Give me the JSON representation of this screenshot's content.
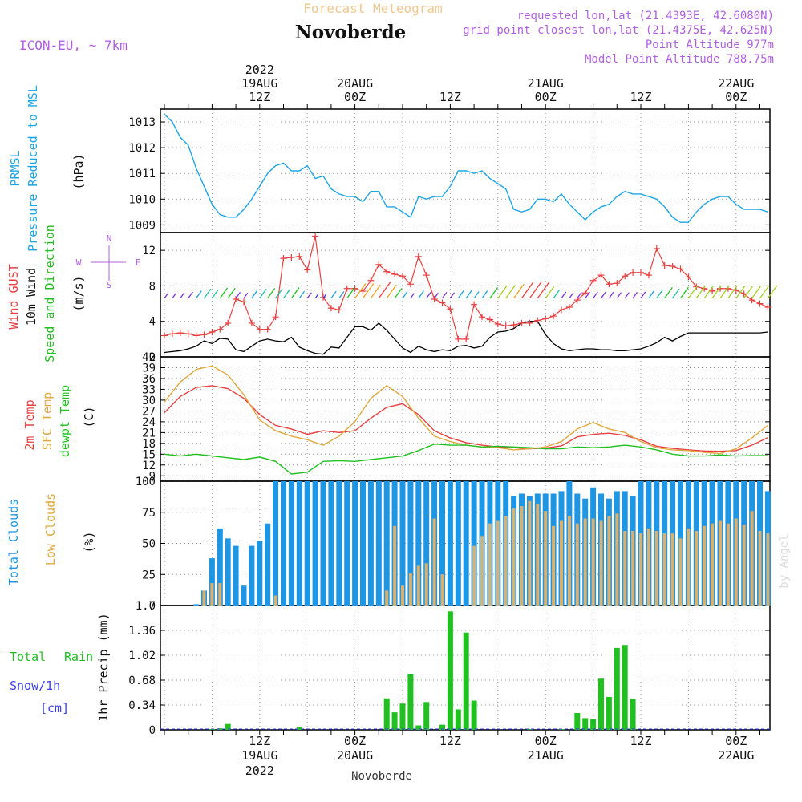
{
  "header": {
    "title": "Forecast Meteogram",
    "location": "Novoberde",
    "model": "ICON-EU, ~ 7km",
    "requested": "requested lon,lat (21.4393E, 42.6080N)",
    "gridpoint": "grid point closest lon,lat (21.4375E, 42.625N)",
    "point_alt": "Point Altitude 977m",
    "model_alt": "Model Point Altitude 788.75m",
    "watermark": "by Angel",
    "footer": "Novoberde"
  },
  "time_axis": {
    "top": [
      {
        "h": 12,
        "l1": "19AUG",
        "l2": "12Z",
        "l0": "2022"
      },
      {
        "h": 24,
        "l1": "20AUG",
        "l2": "00Z"
      },
      {
        "h": 36,
        "l1": "",
        "l2": "12Z"
      },
      {
        "h": 48,
        "l1": "21AUG",
        "l2": "00Z"
      },
      {
        "h": 60,
        "l1": "",
        "l2": "12Z"
      },
      {
        "h": 72,
        "l1": "22AUG",
        "l2": "00Z"
      }
    ],
    "bottom": [
      {
        "h": 12,
        "l1": "12Z",
        "l2": "19AUG",
        "l3": "2022"
      },
      {
        "h": 24,
        "l1": "00Z",
        "l2": "20AUG"
      },
      {
        "h": 36,
        "l1": "12Z",
        "l2": ""
      },
      {
        "h": 48,
        "l1": "00Z",
        "l2": "21AUG"
      },
      {
        "h": 60,
        "l1": "12Z",
        "l2": ""
      },
      {
        "h": 72,
        "l1": "00Z",
        "l2": "22AUG"
      }
    ]
  },
  "panel_labels": {
    "pressure": [
      "PRMSL",
      "Pressure Reduced to MSL",
      "(hPa)"
    ],
    "wind": [
      "Wind GUST",
      "10m Wind",
      "Speed and Direction",
      "(m/s)",
      "W",
      "E",
      "N",
      "S"
    ],
    "temp": [
      "2m Temp",
      "SFC Temp",
      "dewpt Temp",
      "(C)"
    ],
    "clouds": [
      "Total Clouds",
      "Low Clouds",
      "(%)"
    ],
    "precip": [
      "Total",
      "Rain",
      "Snow/1h",
      "[cm]",
      "1hr Precip (mm)"
    ]
  },
  "colors": {
    "pressure": "#1ea5e6",
    "gust": "#e84040",
    "wind": "#000000",
    "t2m": "#e84040",
    "sfc": "#e0a840",
    "dew": "#20c020",
    "total_clouds": "#1e96e6",
    "low_clouds": "#d8b070",
    "rain": "#20c020",
    "snow": "#3c3cf0",
    "title": "#f0c890",
    "meta": "#b060e0"
  },
  "chart_data": [
    {
      "type": "line",
      "title": "PRMSL Pressure Reduced to MSL",
      "ylabel": "(hPa)",
      "ylim": [
        1008.7,
        1013.5
      ],
      "yticks": [
        1009,
        1010,
        1011,
        1012,
        1013
      ],
      "x_hours": [
        0,
        1,
        2,
        3,
        4,
        5,
        6,
        7,
        8,
        9,
        10,
        11,
        12,
        13,
        14,
        15,
        16,
        17,
        18,
        19,
        20,
        21,
        22,
        23,
        24,
        25,
        26,
        27,
        28,
        29,
        30,
        31,
        32,
        33,
        34,
        35,
        36,
        37,
        38,
        39,
        40,
        41,
        42,
        43,
        44,
        45,
        46,
        47,
        48,
        49,
        50,
        51,
        52,
        53,
        54,
        55,
        56,
        57,
        58,
        59,
        60,
        61,
        62,
        63,
        64,
        65,
        66,
        67,
        68,
        69,
        70,
        71,
        72,
        73,
        74,
        75,
        76
      ],
      "values": [
        1013.3,
        1013.0,
        1012.4,
        1012.1,
        1011.2,
        1010.5,
        1009.8,
        1009.4,
        1009.3,
        1009.3,
        1009.6,
        1010.0,
        1010.5,
        1011.0,
        1011.3,
        1011.4,
        1011.1,
        1011.1,
        1011.3,
        1010.8,
        1010.9,
        1010.4,
        1010.2,
        1010.1,
        1010.1,
        1009.9,
        1010.3,
        1010.3,
        1009.7,
        1009.7,
        1009.5,
        1009.3,
        1010.1,
        1010.0,
        1010.1,
        1010.1,
        1010.5,
        1011.1,
        1011.1,
        1011.0,
        1011.1,
        1010.8,
        1010.6,
        1010.4,
        1009.6,
        1009.5,
        1009.6,
        1010.0,
        1010.0,
        1009.9,
        1010.2,
        1009.8,
        1009.5,
        1009.2,
        1009.5,
        1009.7,
        1009.8,
        1010.1,
        1010.3,
        1010.2,
        1010.2,
        1010.1,
        1010.0,
        1009.7,
        1009.3,
        1009.1,
        1009.1,
        1009.5,
        1009.8,
        1010.0,
        1010.1,
        1010.1,
        1009.8,
        1009.6,
        1009.6,
        1009.6,
        1009.5
      ],
      "series": [
        {
          "name": "PRMSL"
        }
      ]
    },
    {
      "type": "line",
      "title": "Wind GUST / 10m Wind Speed and Direction",
      "ylabel": "(m/s)",
      "ylim": [
        0,
        14
      ],
      "yticks": [
        0,
        4,
        8,
        12
      ],
      "x_hours": [
        0,
        1,
        2,
        3,
        4,
        5,
        6,
        7,
        8,
        9,
        10,
        11,
        12,
        13,
        14,
        15,
        16,
        17,
        18,
        19,
        20,
        21,
        22,
        23,
        24,
        25,
        26,
        27,
        28,
        29,
        30,
        31,
        32,
        33,
        34,
        35,
        36,
        37,
        38,
        39,
        40,
        41,
        42,
        43,
        44,
        45,
        46,
        47,
        48,
        49,
        50,
        51,
        52,
        53,
        54,
        55,
        56,
        57,
        58,
        59,
        60,
        61,
        62,
        63,
        64,
        65,
        66,
        67,
        68,
        69,
        70,
        71,
        72,
        73,
        74,
        75,
        76
      ],
      "series": [
        {
          "name": "Wind GUST",
          "values": [
            2.4,
            2.6,
            2.7,
            2.6,
            2.4,
            2.5,
            2.8,
            3.1,
            3.8,
            6.5,
            6.2,
            3.8,
            3.1,
            3.1,
            4.5,
            11.1,
            11.2,
            11.3,
            9.8,
            13.6,
            6.7,
            5.5,
            5.3,
            7.7,
            7.7,
            7.4,
            8.6,
            10.4,
            9.6,
            9.3,
            9.1,
            8.2,
            11.3,
            9.2,
            6.5,
            6.1,
            5.4,
            2.0,
            2.0,
            5.9,
            4.5,
            4.2,
            3.7,
            3.5,
            3.6,
            3.8,
            3.8,
            4.1,
            4.3,
            4.6,
            5.3,
            5.6,
            6.4,
            7.2,
            8.6,
            9.2,
            8.2,
            8.3,
            9.1,
            9.5,
            9.5,
            9.2,
            12.2,
            10.3,
            10.2,
            9.9,
            9.0,
            7.9,
            7.7,
            7.4,
            7.7,
            7.7,
            7.5,
            7.1,
            6.4,
            6.0,
            5.6
          ]
        },
        {
          "name": "10m Wind",
          "values": [
            0.5,
            0.6,
            0.7,
            0.9,
            1.2,
            1.8,
            1.5,
            2.1,
            2.0,
            0.8,
            0.6,
            1.2,
            1.8,
            2.0,
            1.8,
            1.7,
            2.2,
            1.1,
            0.7,
            0.4,
            0.3,
            1.1,
            1.0,
            2.2,
            3.4,
            3.4,
            3.0,
            3.8,
            3.0,
            2.0,
            1.0,
            0.5,
            1.2,
            0.8,
            0.6,
            0.8,
            0.7,
            1.2,
            1.3,
            1.0,
            1.2,
            2.2,
            2.8,
            2.9,
            3.2,
            3.8,
            4.0,
            4.0,
            2.5,
            1.5,
            0.9,
            0.7,
            0.8,
            0.9,
            0.9,
            0.8,
            0.8,
            0.7,
            0.7,
            0.8,
            0.9,
            1.2,
            1.6,
            2.2,
            1.8,
            2.3,
            2.7,
            2.7,
            2.7,
            2.7,
            2.7,
            2.7,
            2.7,
            2.7,
            2.7,
            2.7,
            2.8
          ]
        }
      ]
    },
    {
      "type": "line",
      "title": "2m Temp / SFC Temp / dewpt Temp",
      "ylabel": "(C)",
      "ylim": [
        7.5,
        42
      ],
      "yticks": [
        9,
        12,
        15,
        18,
        21,
        24,
        27,
        30,
        33,
        36,
        39,
        42
      ],
      "x_hours": [
        0,
        2,
        4,
        6,
        8,
        10,
        12,
        14,
        16,
        18,
        20,
        22,
        24,
        26,
        28,
        30,
        32,
        34,
        36,
        38,
        40,
        42,
        44,
        46,
        48,
        50,
        52,
        54,
        56,
        58,
        60,
        62,
        64,
        66,
        68,
        70,
        72,
        74,
        76
      ],
      "series": [
        {
          "name": "2m Temp",
          "values": [
            26.5,
            31.0,
            33.5,
            34.0,
            33.2,
            30.5,
            26.0,
            23.0,
            22.0,
            20.5,
            21.5,
            21.0,
            21.5,
            25.0,
            28.0,
            29.0,
            26.0,
            21.5,
            19.5,
            18.2,
            17.5,
            17.0,
            16.8,
            16.5,
            16.7,
            17.3,
            19.8,
            20.5,
            20.8,
            20.2,
            19.0,
            17.2,
            16.6,
            16.2,
            15.9,
            15.8,
            16.0,
            17.5,
            19.6
          ]
        },
        {
          "name": "SFC Temp",
          "values": [
            29.5,
            35.0,
            38.5,
            39.5,
            37.0,
            31.5,
            24.5,
            21.5,
            20.0,
            19.0,
            17.5,
            20.0,
            24.0,
            30.5,
            34.0,
            31.0,
            25.0,
            20.0,
            18.5,
            17.5,
            17.0,
            16.8,
            16.2,
            16.5,
            17.0,
            18.5,
            22.0,
            23.8,
            22.0,
            21.0,
            18.5,
            16.8,
            16.2,
            16.0,
            15.5,
            15.2,
            16.5,
            19.5,
            23.0
          ]
        },
        {
          "name": "dewpt Temp",
          "values": [
            15.0,
            14.5,
            15.0,
            14.5,
            14.0,
            13.5,
            14.2,
            13.0,
            9.5,
            10.0,
            13.0,
            13.2,
            13.0,
            13.5,
            14.0,
            14.5,
            16.0,
            17.8,
            17.5,
            17.5,
            17.0,
            17.2,
            17.0,
            16.8,
            16.5,
            16.5,
            17.0,
            16.8,
            17.0,
            17.5,
            17.0,
            16.2,
            15.0,
            14.5,
            14.5,
            14.8,
            14.5,
            14.6,
            14.6
          ]
        }
      ]
    },
    {
      "type": "bar",
      "title": "Total Clouds / Low Clouds",
      "ylabel": "(%)",
      "ylim": [
        0,
        100
      ],
      "yticks": [
        0,
        25,
        50,
        75,
        100
      ],
      "x_hours": [
        0,
        1,
        2,
        3,
        4,
        5,
        6,
        7,
        8,
        9,
        10,
        11,
        12,
        13,
        14,
        15,
        16,
        17,
        18,
        19,
        20,
        21,
        22,
        23,
        24,
        25,
        26,
        27,
        28,
        29,
        30,
        31,
        32,
        33,
        34,
        35,
        36,
        37,
        38,
        39,
        40,
        41,
        42,
        43,
        44,
        45,
        46,
        47,
        48,
        49,
        50,
        51,
        52,
        53,
        54,
        55,
        56,
        57,
        58,
        59,
        60,
        61,
        62,
        63,
        64,
        65,
        66,
        67,
        68,
        69,
        70,
        71,
        72,
        73,
        74,
        75,
        76
      ],
      "series": [
        {
          "name": "Total Clouds",
          "values": [
            0,
            0,
            0,
            0,
            1,
            12,
            38,
            62,
            54,
            48,
            16,
            48,
            52,
            66,
            100,
            100,
            100,
            100,
            100,
            100,
            100,
            100,
            100,
            100,
            100,
            100,
            100,
            100,
            100,
            100,
            100,
            100,
            100,
            100,
            100,
            100,
            100,
            100,
            100,
            100,
            100,
            100,
            100,
            100,
            88,
            90,
            88,
            90,
            90,
            90,
            92,
            100,
            90,
            86,
            95,
            90,
            86,
            92,
            92,
            88,
            100,
            100,
            100,
            100,
            100,
            100,
            100,
            100,
            100,
            100,
            100,
            100,
            100,
            100,
            100,
            100,
            92
          ]
        },
        {
          "name": "Low Clouds",
          "values": [
            0,
            0,
            0,
            0,
            0,
            12,
            18,
            18,
            0,
            0,
            0,
            0,
            0,
            0,
            8,
            0,
            0,
            0,
            0,
            0,
            0,
            0,
            0,
            0,
            0,
            0,
            0,
            0,
            12,
            64,
            16,
            26,
            32,
            34,
            70,
            25,
            0,
            0,
            0,
            48,
            56,
            66,
            68,
            72,
            78,
            80,
            84,
            82,
            76,
            64,
            68,
            72,
            66,
            70,
            70,
            68,
            72,
            74,
            60,
            60,
            58,
            62,
            60,
            58,
            58,
            54,
            62,
            60,
            64,
            66,
            68,
            66,
            70,
            65,
            76,
            60,
            58
          ]
        }
      ]
    },
    {
      "type": "bar",
      "title": "1hr Precip",
      "ylabel": "1hr Precip (mm)",
      "ylim": [
        0,
        1.7
      ],
      "yticks": [
        0,
        0.34,
        0.68,
        1.02,
        1.36,
        1.7
      ],
      "x_hours": [
        0,
        1,
        2,
        3,
        4,
        5,
        6,
        7,
        8,
        9,
        10,
        11,
        12,
        13,
        14,
        15,
        16,
        17,
        18,
        19,
        20,
        21,
        22,
        23,
        24,
        25,
        26,
        27,
        28,
        29,
        30,
        31,
        32,
        33,
        34,
        35,
        36,
        37,
        38,
        39,
        40,
        41,
        42,
        43,
        44,
        45,
        46,
        47,
        48,
        49,
        50,
        51,
        52,
        53,
        54,
        55,
        56,
        57,
        58,
        59,
        60,
        61,
        62,
        63,
        64,
        65,
        66,
        67,
        68,
        69,
        70,
        71,
        72,
        73,
        74,
        75,
        76
      ],
      "series": [
        {
          "name": "Rain",
          "values": [
            0,
            0,
            0,
            0,
            0,
            0,
            0.01,
            0.02,
            0.08,
            0,
            0,
            0,
            0,
            0,
            0,
            0,
            0,
            0.04,
            0,
            0,
            0,
            0,
            0,
            0,
            0,
            0,
            0,
            0,
            0.43,
            0.24,
            0.36,
            0.76,
            0.06,
            0.38,
            0,
            0.07,
            1.62,
            0.28,
            1.33,
            0.4,
            0,
            0,
            0,
            0,
            0,
            0,
            0.01,
            0,
            0,
            0,
            0.01,
            0,
            0.23,
            0.16,
            0.15,
            0.7,
            0.45,
            1.12,
            1.16,
            0.42,
            0,
            0,
            0,
            0,
            0,
            0,
            0,
            0,
            0,
            0,
            0,
            0,
            0,
            0,
            0,
            0,
            0
          ]
        },
        {
          "name": "Snow/1h",
          "values": [
            0,
            0,
            0,
            0,
            0,
            0,
            0,
            0,
            0,
            0,
            0,
            0,
            0,
            0,
            0,
            0,
            0,
            0,
            0,
            0,
            0,
            0,
            0,
            0,
            0,
            0,
            0,
            0,
            0,
            0,
            0,
            0,
            0,
            0,
            0,
            0,
            0,
            0,
            0,
            0,
            0,
            0,
            0,
            0,
            0,
            0,
            0,
            0,
            0,
            0,
            0,
            0,
            0,
            0,
            0,
            0,
            0,
            0,
            0,
            0,
            0,
            0,
            0,
            0,
            0,
            0,
            0,
            0,
            0,
            0,
            0,
            0,
            0,
            0,
            0,
            0,
            0
          ]
        }
      ]
    }
  ]
}
